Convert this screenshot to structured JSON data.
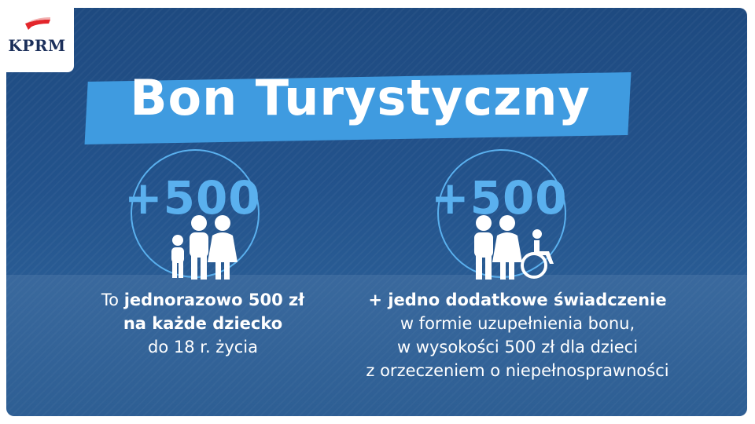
{
  "logo": {
    "text": "KPRM"
  },
  "title": "Bon Turystyczny",
  "left": {
    "amount": "+500",
    "line1_prefix": "To",
    "line1_bold": "jednorazowo 500 zł",
    "line2_bold": "na każde dziecko",
    "line3": "do 18 r. życia"
  },
  "right": {
    "amount": "+500",
    "line1_bold": "+ jedno dodatkowe świadczenie",
    "line2": "w formie uzupełnienia bonu,",
    "line3": "w wysokości 500 zł dla dzieci",
    "line4": "z orzeczeniem o niepełnosprawności"
  },
  "colors": {
    "background": "#23538c",
    "accent": "#3f9be0",
    "icon": "#5ab0ee",
    "logo_red": "#e3262b"
  },
  "icons": [
    "family-icon",
    "family-wheelchair-icon"
  ]
}
